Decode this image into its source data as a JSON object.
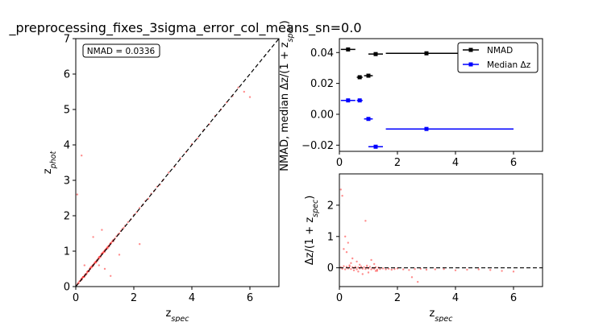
{
  "figure": {
    "title": "_preprocessing_fixes_3sigma_error_col_means_sn=0.0"
  },
  "chart_data": [
    {
      "type": "scatter",
      "title": "",
      "xlabel": "z_spec",
      "ylabel": "z_phot",
      "xlim": [
        0,
        7
      ],
      "ylim": [
        0,
        7
      ],
      "xticks": [
        "0",
        "2",
        "4",
        "6"
      ],
      "yticks": [
        "0",
        "1",
        "2",
        "3",
        "4",
        "5",
        "6",
        "7"
      ],
      "annotation": "NMAD = 0.0336",
      "reference_line": "y = x (dashed)",
      "point_color": "#ff0000",
      "points_x": [
        0.05,
        0.08,
        0.1,
        0.12,
        0.15,
        0.18,
        0.2,
        0.22,
        0.25,
        0.28,
        0.3,
        0.32,
        0.35,
        0.38,
        0.4,
        0.42,
        0.45,
        0.48,
        0.5,
        0.52,
        0.55,
        0.58,
        0.6,
        0.62,
        0.65,
        0.68,
        0.7,
        0.72,
        0.75,
        0.78,
        0.8,
        0.82,
        0.85,
        0.88,
        0.9,
        0.92,
        0.95,
        0.98,
        1.0,
        1.02,
        1.05,
        1.08,
        1.1,
        1.12,
        1.15,
        1.18,
        1.2,
        1.22,
        1.25,
        1.28,
        1.3,
        1.35,
        1.4,
        1.45,
        1.5,
        1.55,
        1.6,
        1.65,
        1.7,
        1.8,
        1.9,
        2.0,
        2.1,
        2.2,
        2.3,
        2.4,
        2.5,
        2.6,
        2.7,
        2.8,
        2.9,
        3.0,
        3.2,
        3.4,
        3.6,
        3.8,
        4.0,
        4.2,
        4.4,
        4.6,
        4.8,
        5.0,
        5.2,
        5.4,
        5.6,
        5.8,
        6.0,
        0.3,
        0.5,
        0.7,
        0.9,
        1.1,
        1.3,
        0.4,
        0.6,
        0.8,
        1.0,
        1.2,
        0.2,
        0.35,
        0.55,
        0.75,
        0.95,
        1.15,
        0.25,
        0.45,
        0.65,
        0.85,
        1.05,
        0.05,
        0.2,
        1.0,
        0.8,
        1.5,
        0.6,
        1.2,
        2.2,
        0.9,
        0.3
      ],
      "points_y": [
        0.06,
        0.1,
        0.09,
        0.14,
        0.16,
        0.2,
        0.19,
        0.24,
        0.27,
        0.27,
        0.31,
        0.34,
        0.36,
        0.37,
        0.42,
        0.44,
        0.44,
        0.5,
        0.5,
        0.55,
        0.54,
        0.6,
        0.61,
        0.63,
        0.66,
        0.7,
        0.7,
        0.74,
        0.76,
        0.8,
        0.79,
        0.84,
        0.86,
        0.9,
        0.92,
        0.93,
        0.96,
        1.0,
        1.02,
        1.04,
        1.05,
        1.1,
        1.11,
        1.14,
        1.16,
        1.2,
        1.22,
        1.23,
        1.27,
        1.3,
        1.32,
        1.36,
        1.42,
        1.47,
        1.5,
        1.57,
        1.62,
        1.66,
        1.72,
        1.82,
        1.9,
        2.02,
        2.1,
        2.22,
        2.3,
        2.42,
        2.48,
        2.62,
        2.7,
        2.82,
        2.88,
        3.0,
        3.22,
        3.38,
        3.62,
        3.8,
        4.02,
        4.18,
        4.42,
        4.58,
        4.82,
        5.0,
        5.2,
        5.38,
        5.62,
        5.5,
        5.35,
        0.28,
        0.52,
        0.68,
        0.94,
        1.08,
        1.28,
        0.41,
        0.58,
        0.83,
        0.98,
        1.21,
        0.22,
        0.33,
        0.57,
        0.73,
        0.97,
        1.13,
        0.27,
        0.43,
        0.67,
        0.83,
        1.07,
        2.6,
        3.7,
        0.5,
        0.6,
        0.9,
        1.4,
        0.3,
        1.2,
        1.6,
        0.6
      ]
    },
    {
      "type": "errorbar",
      "title": "",
      "xlabel": "",
      "ylabel": "NMAD, median Δz/(1 + z_spec)",
      "xlim": [
        0,
        7
      ],
      "ylim": [
        -0.024,
        0.049
      ],
      "xticks": [
        "0",
        "2",
        "4",
        "6"
      ],
      "yticks": [
        "−0.02",
        "0.00",
        "0.02",
        "0.04"
      ],
      "legend_position": "upper-right",
      "series": [
        {
          "name": "NMAD",
          "color": "#000000",
          "x": [
            0.3,
            0.7,
            1.0,
            1.25,
            3.0
          ],
          "y": [
            0.042,
            0.024,
            0.025,
            0.039,
            0.0395
          ],
          "xerr_lo": [
            0.25,
            0.1,
            0.15,
            0.25,
            1.4
          ],
          "xerr_hi": [
            0.25,
            0.1,
            0.15,
            0.25,
            3.0
          ]
        },
        {
          "name": "Median Δz",
          "color": "#0000ff",
          "x": [
            0.3,
            0.7,
            1.0,
            1.25,
            3.0
          ],
          "y": [
            0.009,
            0.009,
            -0.003,
            -0.021,
            -0.0095
          ],
          "xerr_lo": [
            0.25,
            0.1,
            0.15,
            0.25,
            1.4
          ],
          "xerr_hi": [
            0.25,
            0.1,
            0.15,
            0.25,
            3.0
          ]
        }
      ]
    },
    {
      "type": "scatter",
      "title": "",
      "xlabel": "z_spec",
      "ylabel": "Δz/(1 + z_spec)",
      "xlim": [
        0,
        7
      ],
      "ylim": [
        -0.6,
        3.0
      ],
      "xticks": [
        "0",
        "2",
        "4",
        "6"
      ],
      "yticks": [
        "0",
        "1",
        "2"
      ],
      "reference_line": "y = 0 (dashed)",
      "point_color": "#ff0000",
      "points_x": [
        0.05,
        0.1,
        0.15,
        0.2,
        0.25,
        0.3,
        0.35,
        0.4,
        0.45,
        0.5,
        0.55,
        0.6,
        0.65,
        0.7,
        0.75,
        0.8,
        0.85,
        0.9,
        0.95,
        1.0,
        1.05,
        1.1,
        1.15,
        1.2,
        1.25,
        1.3,
        1.35,
        1.4,
        1.5,
        1.6,
        1.7,
        1.8,
        1.9,
        2.0,
        2.2,
        2.4,
        2.6,
        2.8,
        3.0,
        3.3,
        3.6,
        4.0,
        4.4,
        4.8,
        5.2,
        5.6,
        6.0,
        0.05,
        0.1,
        0.2,
        0.3,
        0.45,
        0.6,
        0.9,
        0.15,
        0.25,
        0.8,
        1.1,
        1.3,
        2.5,
        2.7,
        0.4,
        0.7,
        1.0,
        1.2,
        0.5,
        0.35,
        0.65,
        0.95,
        1.25
      ],
      "points_y": [
        0.02,
        -0.03,
        0.05,
        -0.05,
        0.03,
        -0.02,
        0.04,
        -0.04,
        0.02,
        -0.01,
        0.03,
        -0.05,
        0.01,
        -0.02,
        0.04,
        -0.03,
        0.02,
        -0.04,
        0.01,
        -0.02,
        0.03,
        -0.05,
        0.0,
        -0.03,
        0.02,
        -0.06,
        0.01,
        -0.04,
        -0.02,
        -0.05,
        -0.03,
        -0.06,
        -0.04,
        -0.02,
        -0.05,
        -0.07,
        -0.04,
        -0.03,
        -0.06,
        -0.05,
        -0.04,
        -0.08,
        -0.06,
        -0.05,
        -0.07,
        -0.1,
        -0.12,
        2.5,
        2.3,
        1.0,
        0.8,
        0.3,
        0.2,
        1.5,
        0.6,
        0.5,
        -0.2,
        0.25,
        -0.1,
        -0.3,
        -0.45,
        0.15,
        0.1,
        -0.15,
        0.12,
        -0.08,
        0.08,
        -0.12,
        0.07,
        -0.1
      ]
    }
  ]
}
